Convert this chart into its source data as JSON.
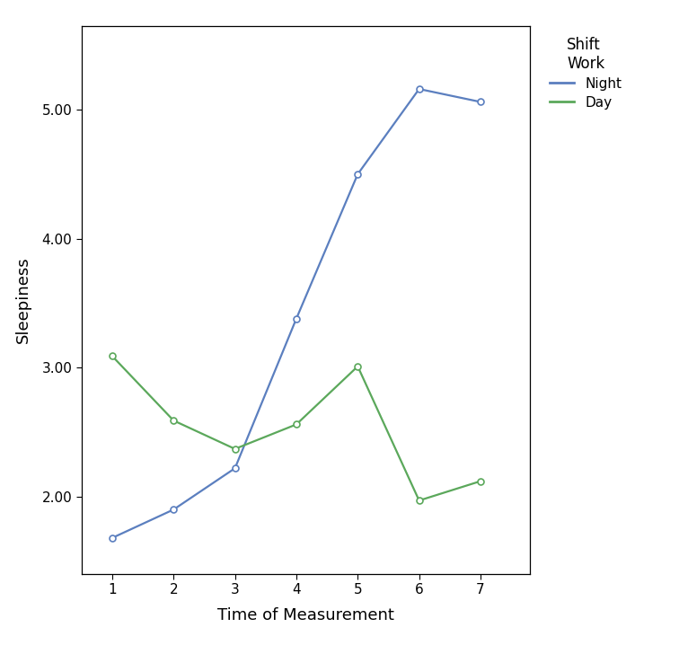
{
  "x": [
    1,
    2,
    3,
    4,
    5,
    6,
    7
  ],
  "night_y": [
    1.68,
    1.9,
    2.22,
    3.38,
    4.5,
    5.16,
    5.06
  ],
  "day_y": [
    3.09,
    2.59,
    2.37,
    2.56,
    3.01,
    1.97,
    2.12
  ],
  "night_color": "#5B7FBF",
  "day_color": "#5BA85B",
  "night_label": "Night",
  "day_label": "Day",
  "legend_title": "Shift\nWork",
  "xlabel": "Time of Measurement",
  "ylabel": "Sleepiness",
  "xlim": [
    0.5,
    7.8
  ],
  "ylim": [
    1.4,
    5.65
  ],
  "yticks": [
    2.0,
    3.0,
    4.0,
    5.0
  ],
  "xticks": [
    1,
    2,
    3,
    4,
    5,
    6,
    7
  ],
  "marker": "o",
  "marker_size": 5,
  "linewidth": 1.6,
  "bg_color": "#ffffff",
  "axes_bg_color": "#ffffff",
  "label_fontsize": 13,
  "tick_fontsize": 11,
  "legend_fontsize": 11,
  "legend_title_fontsize": 12
}
